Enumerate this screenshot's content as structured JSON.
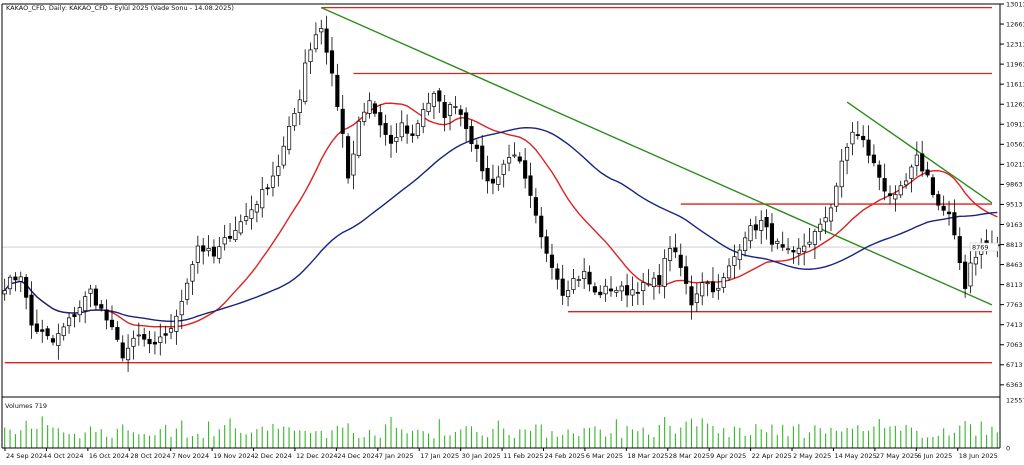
{
  "chart_data": {
    "type": "candlestick",
    "header": "KAKAO_CFD, Daily:  KAKAO_CFD - Eylül 2025 (Vade Sonu - 14.08.2025)",
    "price_axis": {
      "ticks": [
        "13013",
        "12663",
        "12313",
        "11963",
        "11613",
        "11263",
        "10913",
        "10563",
        "10213",
        "9863",
        "9513",
        "9163",
        "8813",
        "8463",
        "8113",
        "7763",
        "7413",
        "7063",
        "6713",
        "6363"
      ],
      "ylim": [
        6168,
        13013
      ],
      "current_price_label": "8769",
      "current_price": 8769
    },
    "date_axis": {
      "labels": [
        "24 Sep 2024",
        "4 Oct 2024",
        "16 Oct 2024",
        "28 Oct 2024",
        "7 Nov 2024",
        "19 Nov 2024",
        "2 Dec 2024",
        "12 Dec 2024",
        "24 Dec 2024",
        "7 Jan 2025",
        "17 Jan 2025",
        "30 Jan 2025",
        "11 Feb 2025",
        "24 Feb 2025",
        "6 Mar 2025",
        "18 Mar 2025",
        "28 Mar 2025",
        "9 Apr 2025",
        "22 Apr 2025",
        "2 May 2025",
        "14 May 2025",
        "27 May 2025",
        "6 Jun 2025",
        "18 Jun 2025"
      ]
    },
    "volume_panel": {
      "label": "Volumes 719",
      "ticks": [
        "12557",
        "0"
      ],
      "ylim": [
        0,
        12557
      ]
    },
    "price_knots": [
      [
        0,
        8100
      ],
      [
        3,
        8300
      ],
      [
        5,
        7400
      ],
      [
        9,
        7100
      ],
      [
        13,
        7600
      ],
      [
        16,
        8000
      ],
      [
        19,
        7500
      ],
      [
        22,
        6900
      ],
      [
        25,
        7200
      ],
      [
        28,
        7000
      ],
      [
        32,
        7500
      ],
      [
        34,
        8200
      ],
      [
        36,
        8800
      ],
      [
        39,
        8600
      ],
      [
        42,
        9000
      ],
      [
        45,
        9300
      ],
      [
        48,
        9700
      ],
      [
        51,
        10200
      ],
      [
        53,
        10800
      ],
      [
        55,
        11400
      ],
      [
        56,
        12000
      ],
      [
        58,
        12500
      ],
      [
        59,
        12600
      ],
      [
        61,
        11800
      ],
      [
        62,
        11200
      ],
      [
        63,
        10800
      ],
      [
        64,
        9900
      ],
      [
        66,
        10900
      ],
      [
        68,
        11300
      ],
      [
        70,
        10900
      ],
      [
        72,
        10500
      ],
      [
        74,
        10900
      ],
      [
        76,
        10700
      ],
      [
        78,
        11200
      ],
      [
        80,
        11400
      ],
      [
        82,
        11100
      ],
      [
        84,
        11300
      ],
      [
        86,
        10900
      ],
      [
        88,
        10400
      ],
      [
        90,
        9900
      ],
      [
        92,
        10000
      ],
      [
        94,
        10400
      ],
      [
        96,
        10200
      ],
      [
        98,
        9600
      ],
      [
        100,
        8900
      ],
      [
        102,
        8500
      ],
      [
        104,
        8000
      ],
      [
        106,
        8200
      ],
      [
        108,
        8300
      ],
      [
        110,
        7950
      ],
      [
        113,
        8050
      ],
      [
        116,
        8000
      ],
      [
        118,
        8050
      ],
      [
        120,
        8100
      ],
      [
        122,
        8200
      ],
      [
        124,
        8800
      ],
      [
        126,
        8400
      ],
      [
        128,
        7800
      ],
      [
        130,
        8200
      ],
      [
        133,
        8000
      ],
      [
        136,
        8600
      ],
      [
        138,
        9000
      ],
      [
        141,
        9200
      ],
      [
        143,
        8900
      ],
      [
        145,
        8700
      ],
      [
        147,
        8600
      ],
      [
        149,
        8800
      ],
      [
        152,
        9100
      ],
      [
        154,
        9500
      ],
      [
        156,
        10200
      ],
      [
        158,
        10800
      ],
      [
        160,
        10600
      ],
      [
        162,
        10200
      ],
      [
        164,
        9800
      ],
      [
        166,
        9600
      ],
      [
        168,
        9900
      ],
      [
        170,
        10300
      ],
      [
        172,
        10000
      ],
      [
        174,
        9500
      ],
      [
        176,
        9300
      ],
      [
        177,
        8900
      ],
      [
        178,
        8500
      ],
      [
        179,
        8100
      ],
      [
        180,
        8500
      ],
      [
        182,
        8800
      ]
    ],
    "moving_averages": [
      {
        "period": 20,
        "color": "#dd2020"
      },
      {
        "period": 50,
        "color": "#1a237e"
      }
    ],
    "annotations": {
      "horizontal_lines": [
        {
          "price": 12950,
          "from_bar": 59,
          "to_bar": 184,
          "color": "#e0201b"
        },
        {
          "price": 11800,
          "from_bar": 65,
          "to_bar": 184,
          "color": "#e0201b"
        },
        {
          "price": 9520,
          "from_bar": 126,
          "to_bar": 184,
          "color": "#e0201b"
        },
        {
          "price": 7640,
          "from_bar": 105,
          "to_bar": 184,
          "color": "#e0201b"
        },
        {
          "price": 6750,
          "from_bar": 0,
          "to_bar": 184,
          "color": "#e0201b"
        }
      ],
      "trendlines": [
        {
          "from": [
            59,
            12950
          ],
          "to": [
            184,
            7760
          ],
          "color": "#2e8b1e"
        },
        {
          "from": [
            157,
            11300
          ],
          "to": [
            184,
            9540
          ],
          "color": "#2e8b1e"
        }
      ]
    },
    "colors": {
      "bull_fill": "#ffffff",
      "bear_fill": "#000000",
      "candle_outline": "#000000",
      "volume": "#35b52a",
      "axis": "#000000",
      "current_price_line": "#c8c8c8"
    }
  }
}
